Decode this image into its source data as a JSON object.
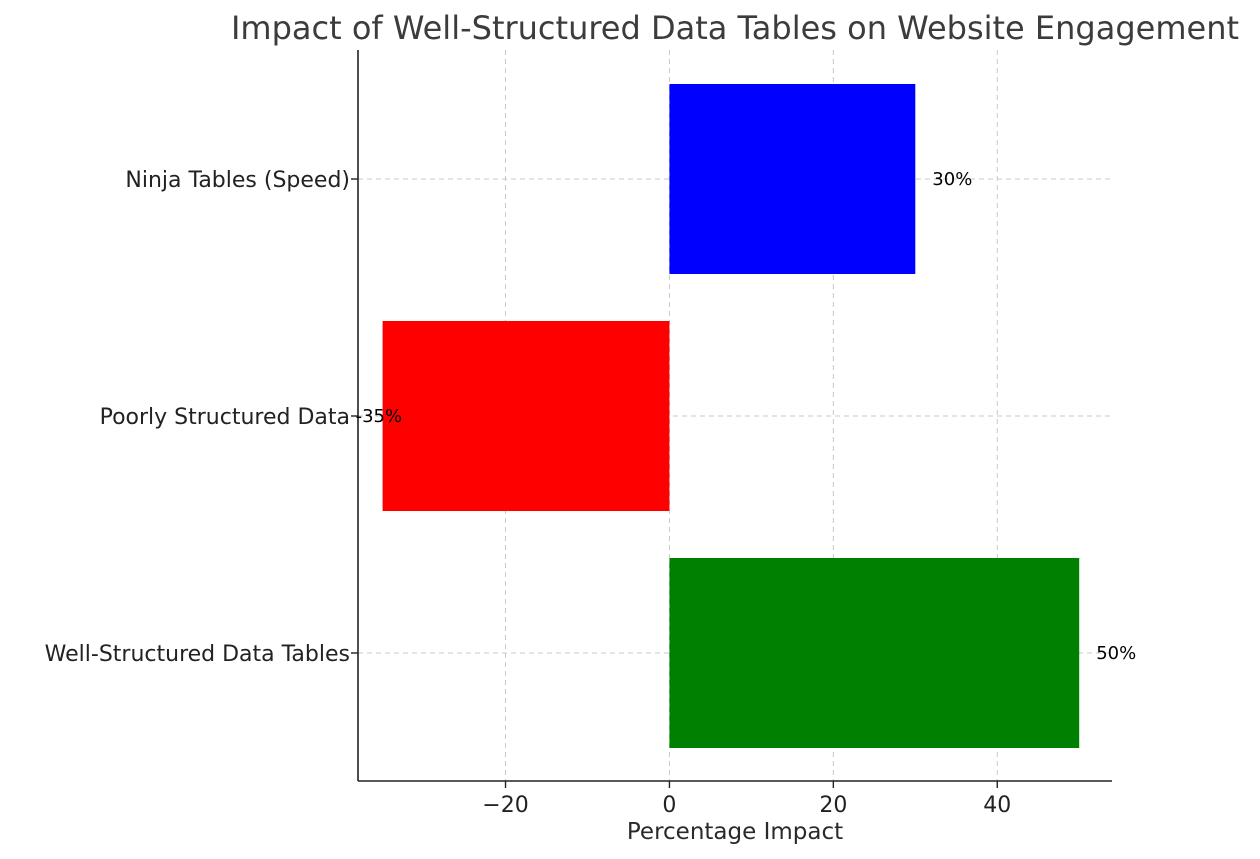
{
  "chart_data": {
    "type": "bar",
    "orientation": "horizontal",
    "title": "Impact of Well-Structured Data Tables on Website Engagement",
    "xlabel": "Percentage Impact",
    "ylabel": "",
    "xlim": [
      -38,
      54
    ],
    "x_ticks": [
      -20,
      0,
      20,
      40
    ],
    "x_tick_labels": [
      "−20",
      "0",
      "20",
      "40"
    ],
    "grid": true,
    "categories": [
      "Well-Structured Data Tables",
      "Poorly Structured Data",
      "Ninja Tables (Speed)"
    ],
    "values": [
      50,
      -35,
      30
    ],
    "value_labels": [
      "50%",
      "-35%",
      "30%"
    ],
    "colors": [
      "#008000",
      "#ff0000",
      "#0000ff"
    ]
  }
}
